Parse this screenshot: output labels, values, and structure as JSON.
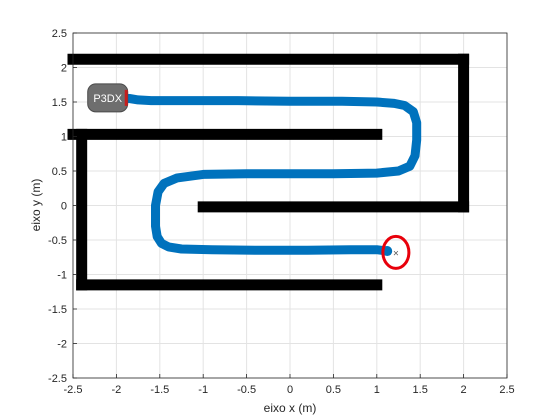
{
  "chart_data": {
    "type": "line",
    "xlabel": "eixo x (m)",
    "ylabel": "eixo y (m)",
    "xlim": [
      -2.5,
      2.5
    ],
    "ylim": [
      -2.5,
      2.5
    ],
    "xticks": [
      "-2.5",
      "-2",
      "-1.5",
      "-1",
      "-0.5",
      "0",
      "0.5",
      "1",
      "1.5",
      "2",
      "2.5"
    ],
    "yticks": [
      "2.5",
      "2",
      "1.5",
      "1",
      "0.5",
      "0",
      "-0.5",
      "-1",
      "-1.5",
      "-2",
      "-2.5"
    ],
    "grid": true,
    "walls": [
      {
        "x": [
          -2.5,
          2.0
        ],
        "y": [
          2.12,
          2.12
        ]
      },
      {
        "x": [
          2.0,
          2.0
        ],
        "y": [
          2.12,
          -0.02
        ]
      },
      {
        "x": [
          -1.0,
          2.0
        ],
        "y": [
          -0.02,
          -0.02
        ]
      },
      {
        "x": [
          -2.5,
          1.0
        ],
        "y": [
          1.03,
          1.03
        ]
      },
      {
        "x": [
          -2.4,
          -2.4
        ],
        "y": [
          1.03,
          -1.15
        ]
      },
      {
        "x": [
          -2.4,
          1.0
        ],
        "y": [
          -1.15,
          -1.15
        ]
      }
    ],
    "series": [
      {
        "color": "#0072bd",
        "x": [
          -1.95,
          -1.85,
          -1.75,
          -1.6,
          -1.2,
          -0.6,
          0.0,
          0.6,
          1.0,
          1.2,
          1.32,
          1.42,
          1.46,
          1.46,
          1.44,
          1.38,
          1.25,
          1.0,
          0.5,
          0.0,
          -0.5,
          -1.0,
          -1.3,
          -1.45,
          -1.52,
          -1.55,
          -1.55,
          -1.53,
          -1.48,
          -1.4,
          -1.25,
          -0.9,
          -0.4,
          0.2,
          0.7,
          1.0,
          1.12
        ],
        "y": [
          1.56,
          1.55,
          1.53,
          1.52,
          1.52,
          1.52,
          1.51,
          1.51,
          1.5,
          1.48,
          1.45,
          1.36,
          1.2,
          0.95,
          0.72,
          0.57,
          0.5,
          0.47,
          0.46,
          0.46,
          0.46,
          0.45,
          0.4,
          0.32,
          0.2,
          0.0,
          -0.3,
          -0.45,
          -0.55,
          -0.6,
          -0.63,
          -0.64,
          -0.65,
          -0.65,
          -0.64,
          -0.64,
          -0.66
        ]
      }
    ],
    "robot": {
      "label": "P3DX",
      "x": -2.1,
      "y": 1.56
    },
    "goal": {
      "symbol": "×",
      "x": 1.22,
      "y": -0.68,
      "color": "#e8000b"
    }
  }
}
